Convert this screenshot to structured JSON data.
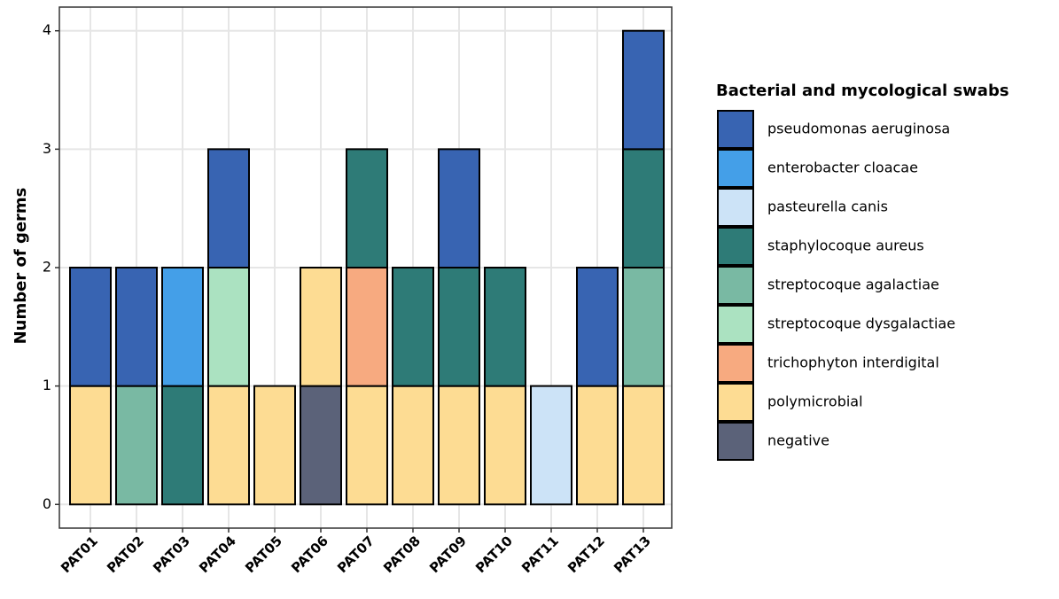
{
  "chart_data": {
    "type": "bar",
    "stacked": true,
    "ylabel": "Number of germs",
    "legend_title": "Bacterial and mycological swabs",
    "categories": [
      "PAT01",
      "PAT02",
      "PAT03",
      "PAT04",
      "PAT05",
      "PAT06",
      "PAT07",
      "PAT08",
      "PAT09",
      "PAT10",
      "PAT11",
      "PAT12",
      "PAT13"
    ],
    "series": [
      {
        "name": "pseudomonas aeruginosa",
        "color": "#3864b2",
        "values": [
          1,
          1,
          0,
          1,
          0,
          0,
          0,
          0,
          1,
          0,
          0,
          1,
          1
        ]
      },
      {
        "name": "enterobacter cloacae",
        "color": "#449fe8",
        "values": [
          0,
          0,
          1,
          0,
          0,
          0,
          0,
          0,
          0,
          0,
          0,
          0,
          0
        ]
      },
      {
        "name": "pasteurella canis",
        "color": "#cce3f7",
        "values": [
          0,
          0,
          0,
          0,
          0,
          0,
          0,
          0,
          0,
          0,
          1,
          0,
          0
        ]
      },
      {
        "name": "staphylocoque aureus",
        "color": "#2e7b77",
        "values": [
          0,
          0,
          1,
          0,
          0,
          0,
          1,
          1,
          1,
          1,
          0,
          0,
          1
        ]
      },
      {
        "name": "streptocoque agalactiae",
        "color": "#79b9a3",
        "values": [
          0,
          1,
          0,
          0,
          0,
          0,
          0,
          0,
          0,
          0,
          0,
          0,
          1
        ]
      },
      {
        "name": "streptocoque dysgalactiae",
        "color": "#abe2c1",
        "values": [
          0,
          0,
          0,
          1,
          0,
          0,
          0,
          0,
          0,
          0,
          0,
          0,
          0
        ]
      },
      {
        "name": "trichophyton interdigital",
        "color": "#f7aa80",
        "values": [
          0,
          0,
          0,
          0,
          0,
          0,
          1,
          0,
          0,
          0,
          0,
          0,
          0
        ]
      },
      {
        "name": "polymicrobial",
        "color": "#fddc93",
        "values": [
          1,
          0,
          0,
          1,
          1,
          1,
          1,
          1,
          1,
          1,
          0,
          1,
          1
        ]
      },
      {
        "name": "negative",
        "color": "#5b6279",
        "values": [
          0,
          0,
          0,
          0,
          0,
          1,
          0,
          0,
          0,
          0,
          0,
          0,
          0
        ]
      }
    ],
    "ylim": [
      -0.2,
      4.2
    ],
    "yticks": [
      0,
      1,
      2,
      3,
      4
    ],
    "grid": true
  }
}
